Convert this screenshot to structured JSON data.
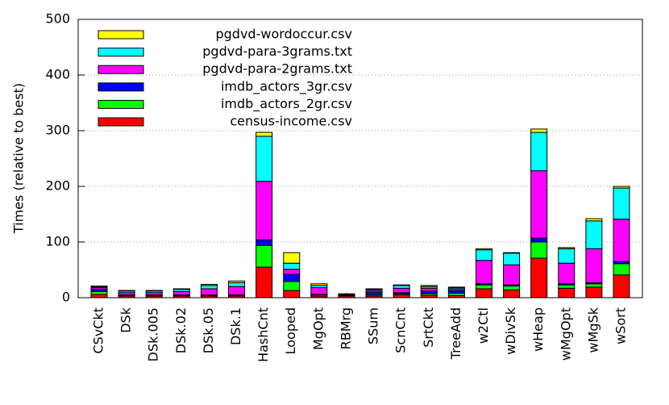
{
  "chart_data": {
    "type": "stacked_bar",
    "y_label": "Times (relative to best)",
    "categories": [
      "CSvCkt",
      "DSk",
      "DSk.005",
      "DSk.02",
      "DSk.05",
      "DSk.1",
      "HashCnt",
      "Looped",
      "MgOpt",
      "RBMrg",
      "SSum",
      "ScnCnt",
      "SrtCkt",
      "TreeAdd",
      "w2Ctl",
      "wDivSk",
      "wHeap",
      "wMgOpt",
      "wMgSk",
      "wSort"
    ],
    "series": [
      {
        "name": "census-income.csv",
        "color": "#ff0000",
        "values": [
          6,
          3,
          3,
          3,
          3,
          3,
          55,
          13,
          3,
          3,
          3,
          5,
          4,
          4,
          16,
          14,
          71,
          17,
          19,
          41
        ]
      },
      {
        "name": "imdb_actors_2gr.csv",
        "color": "#00ff00",
        "values": [
          5,
          1,
          1,
          1,
          1,
          1,
          39,
          16,
          2,
          1,
          2,
          2,
          3,
          4,
          7,
          7,
          29,
          6,
          6,
          20
        ]
      },
      {
        "name": "imdb_actors_3gr.csv",
        "color": "#0000ff",
        "values": [
          4,
          1,
          1,
          1,
          1,
          1,
          10,
          13,
          1,
          1,
          5,
          2,
          5,
          5,
          2,
          2,
          7,
          2,
          2,
          4
        ]
      },
      {
        "name": "pgdvd-para-2grams.txt",
        "color": "#ff00ff",
        "values": [
          3,
          4,
          4,
          6,
          11,
          15,
          105,
          9,
          12,
          1,
          3,
          8,
          5,
          3,
          42,
          36,
          121,
          37,
          61,
          76
        ]
      },
      {
        "name": "pgdvd-para-3grams.txt",
        "color": "#00ffff",
        "values": [
          2,
          3,
          3,
          4,
          6,
          7,
          81,
          11,
          4,
          1,
          2,
          5,
          3,
          2,
          19,
          21,
          69,
          26,
          50,
          56
        ]
      },
      {
        "name": "pgdvd-wordoccur.csv",
        "color": "#ffff00",
        "values": [
          1,
          1,
          1,
          1,
          2,
          3,
          7,
          19,
          3,
          0,
          1,
          1,
          2,
          1,
          2,
          1,
          6,
          2,
          4,
          3
        ]
      }
    ],
    "ylim": [
      0,
      500
    ],
    "yticks": [
      0,
      100,
      200,
      300,
      400,
      500
    ],
    "grid": true,
    "legend": "top-left"
  }
}
